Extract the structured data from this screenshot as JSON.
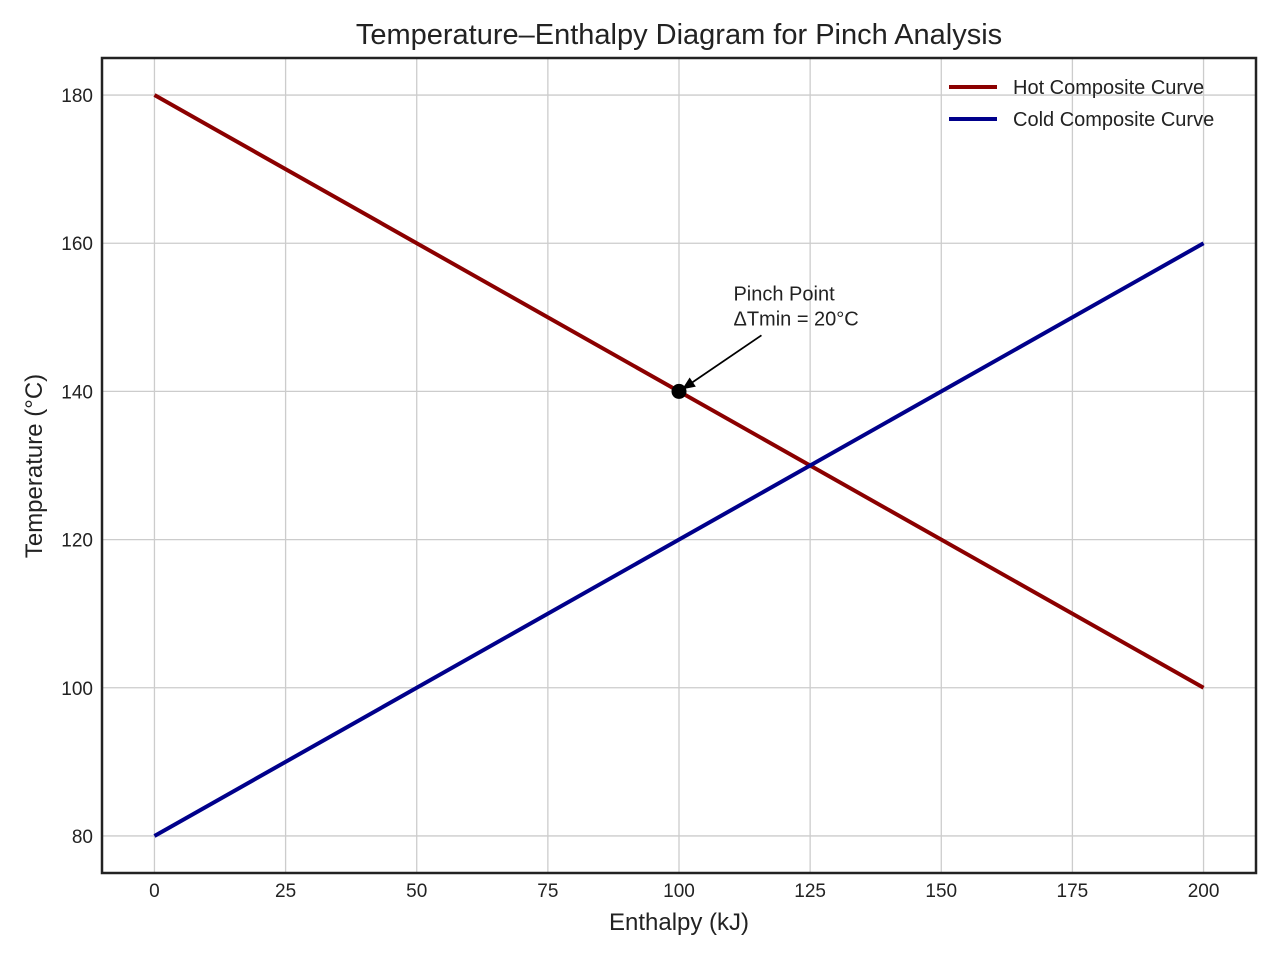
{
  "chart_data": {
    "type": "line",
    "title": "Temperature–Enthalpy Diagram for Pinch Analysis",
    "xlabel": "Enthalpy (kJ)",
    "ylabel": "Temperature (°C)",
    "xlim": [
      -10,
      210
    ],
    "ylim": [
      75,
      185
    ],
    "xticks": [
      0,
      25,
      50,
      75,
      100,
      125,
      150,
      175,
      200
    ],
    "yticks": [
      80,
      100,
      120,
      140,
      160,
      180
    ],
    "grid": true,
    "legend_position": "top-right",
    "series": [
      {
        "name": "Hot Composite Curve",
        "color": "#8b0000",
        "x": [
          0,
          200
        ],
        "y": [
          180,
          100
        ]
      },
      {
        "name": "Cold Composite Curve",
        "color": "#00008b",
        "x": [
          0,
          200
        ],
        "y": [
          80,
          160
        ]
      }
    ],
    "annotation": {
      "lines": [
        "Pinch Point",
        "ΔTmin = 20°C"
      ],
      "point": {
        "x": 100,
        "y": 140
      },
      "text_anchor": {
        "x": 110,
        "y": 150
      }
    }
  }
}
